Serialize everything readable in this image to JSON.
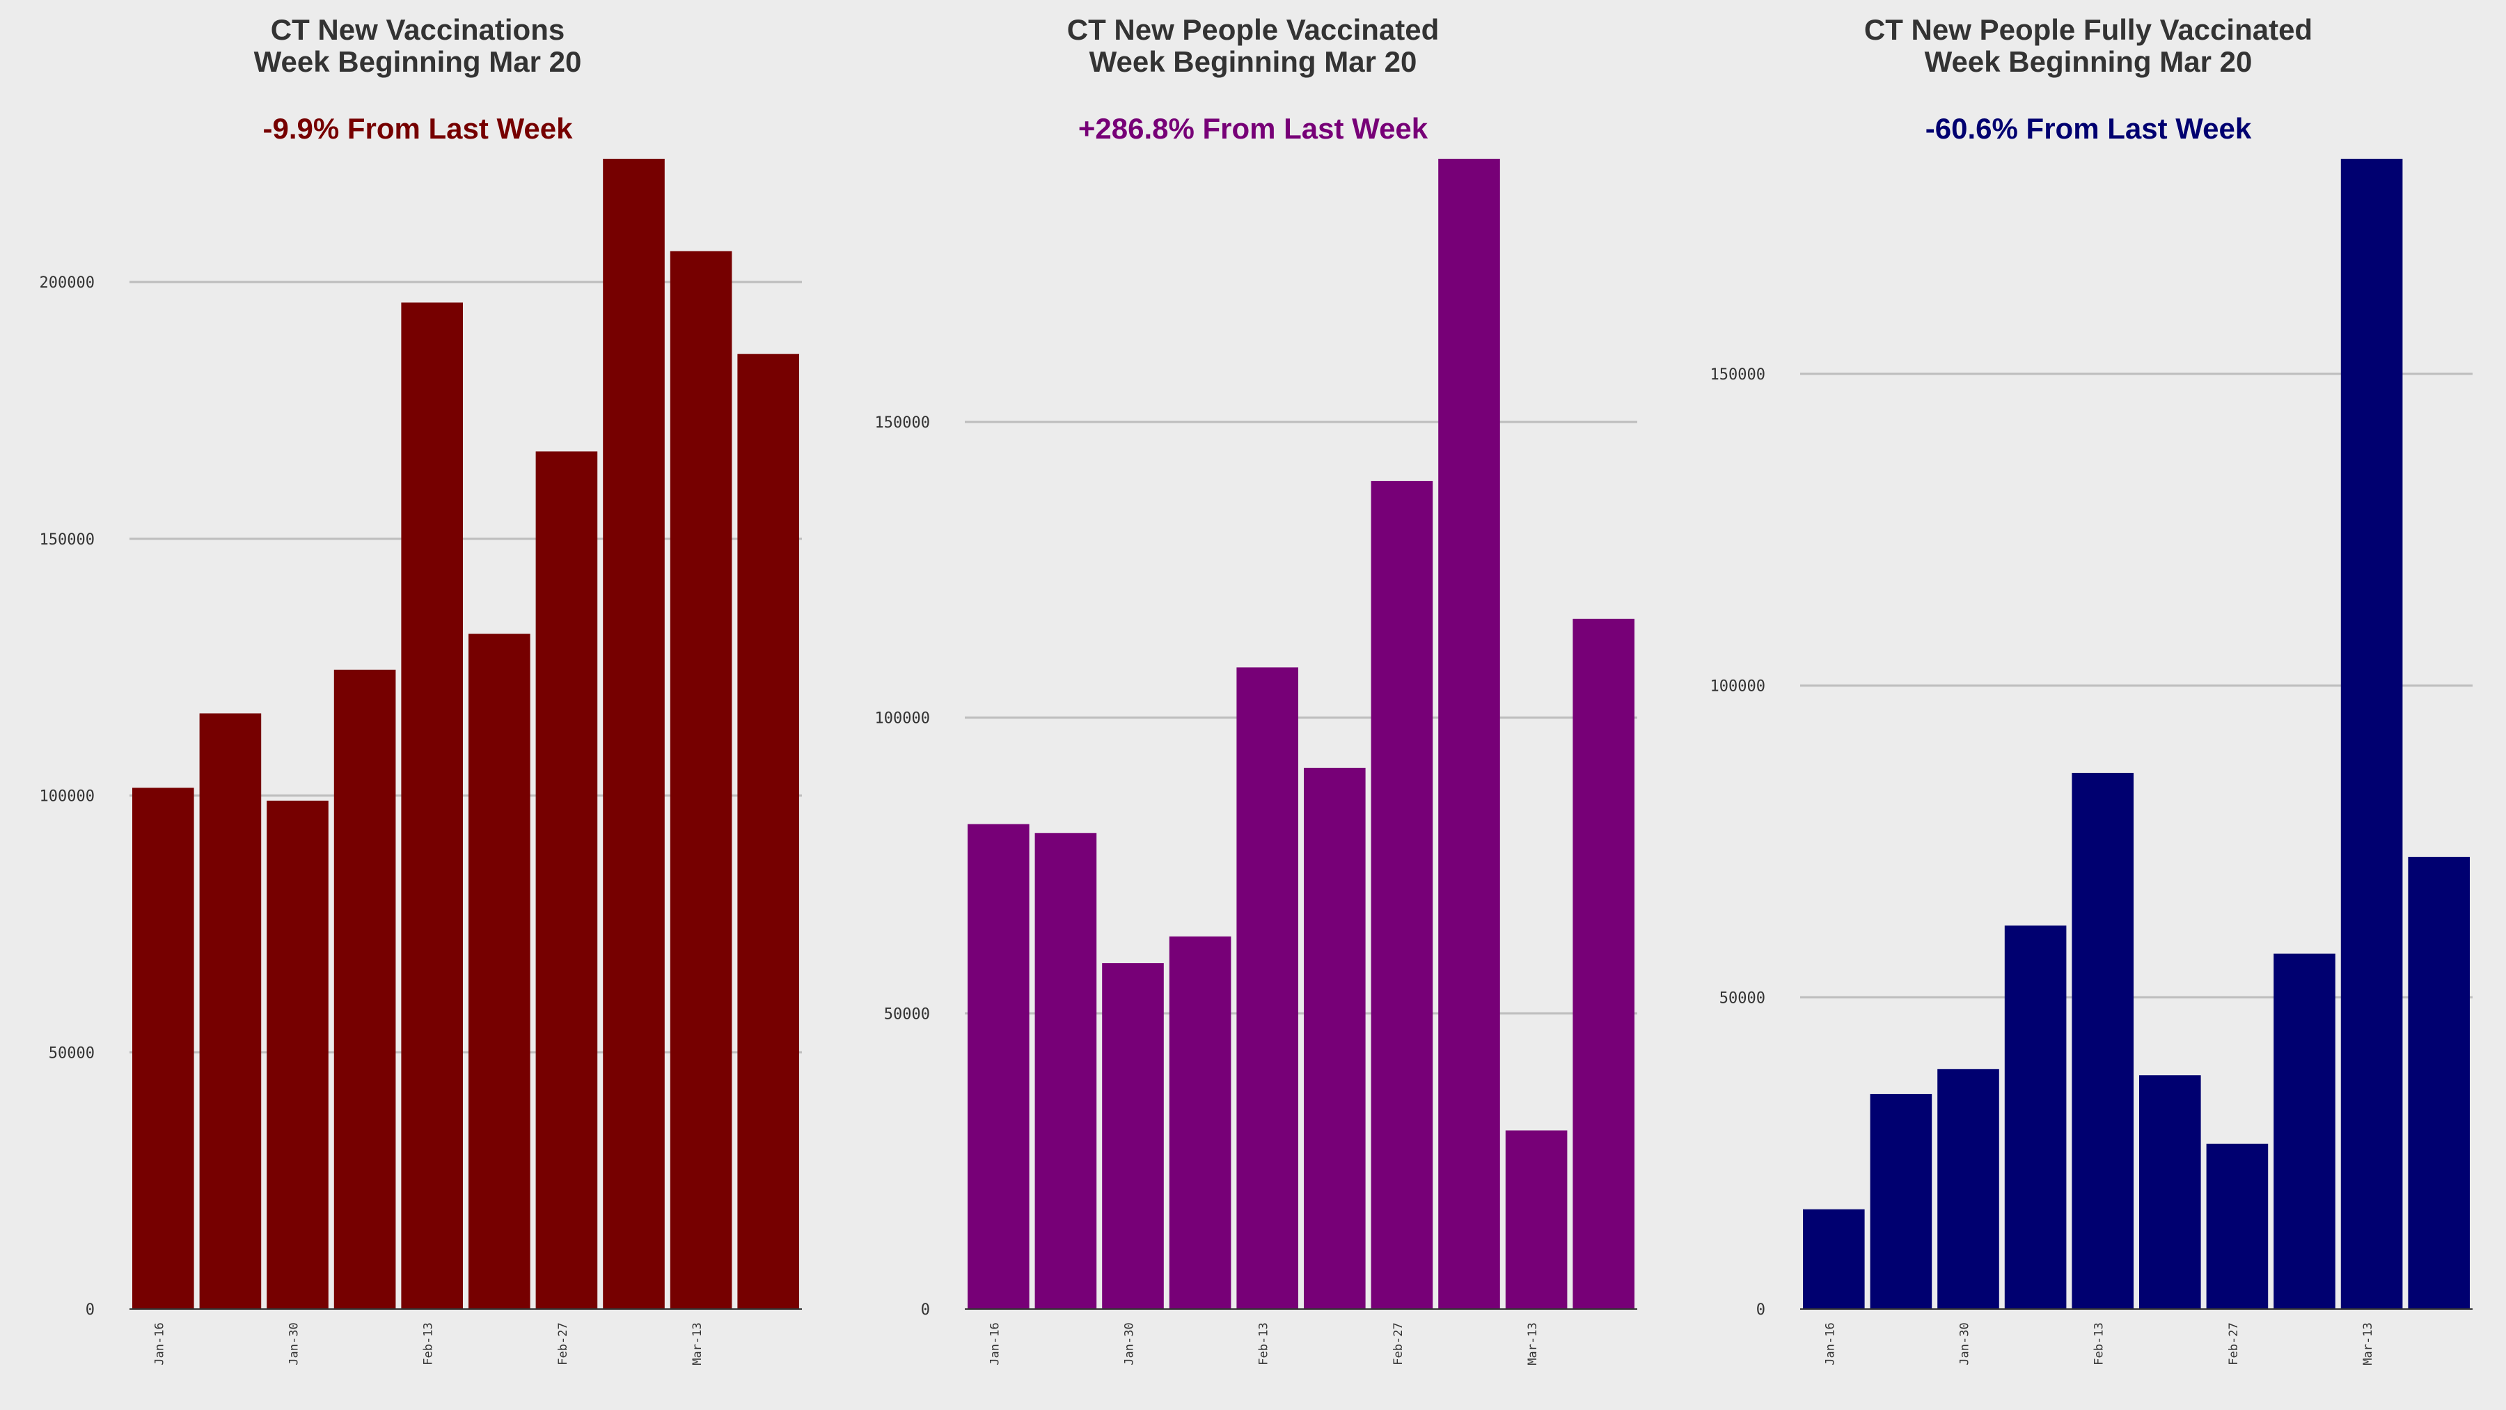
{
  "chart_data": [
    {
      "type": "bar",
      "title": "CT New Vaccinations\nWeek Beginning Mar 20",
      "title_lines": [
        "CT New Vaccinations",
        "Week Beginning Mar 20"
      ],
      "subtitle": "-9.9% From Last Week",
      "color": "#760000",
      "ylim": [
        0,
        224000
      ],
      "yticks": [
        0,
        50000,
        100000,
        150000,
        200000
      ],
      "tick_labels": [
        "Jan-16",
        "Jan-30",
        "Feb-13",
        "Feb-27",
        "Mar-13"
      ],
      "values": [
        101500,
        116000,
        99000,
        124500,
        196000,
        131500,
        167000,
        224000,
        206000,
        186000
      ],
      "grid": true,
      "legend": false,
      "xlabel": "",
      "ylabel": ""
    },
    {
      "type": "bar",
      "title": "CT New People Vaccinated\nWeek Beginning Mar 20",
      "title_lines": [
        "CT New People Vaccinated",
        "Week Beginning Mar 20"
      ],
      "subtitle": "+286.8% From Last Week",
      "color": "#770077",
      "ylim": [
        0,
        194500
      ],
      "yticks": [
        0,
        50000,
        100000,
        150000
      ],
      "tick_labels": [
        "Jan-16",
        "Jan-30",
        "Feb-13",
        "Feb-27",
        "Mar-13"
      ],
      "values": [
        82000,
        80500,
        58500,
        63000,
        108500,
        91500,
        140000,
        194500,
        30200,
        116700
      ],
      "grid": true,
      "legend": false,
      "xlabel": "",
      "ylabel": ""
    },
    {
      "type": "bar",
      "title": "CT New People Fully Vaccinated\nWeek Beginning Mar 20",
      "title_lines": [
        "CT New People Fully Vaccinated",
        "Week Beginning Mar 20"
      ],
      "subtitle": "-60.6% From Last Week",
      "color": "#000070",
      "ylim": [
        0,
        184500
      ],
      "yticks": [
        0,
        50000,
        100000,
        150000
      ],
      "tick_labels": [
        "Jan-16",
        "Jan-30",
        "Feb-13",
        "Feb-27",
        "Mar-13"
      ],
      "values": [
        16000,
        34500,
        38500,
        61500,
        86000,
        37500,
        26500,
        57000,
        184500,
        72500
      ],
      "grid": true,
      "legend": false,
      "xlabel": "",
      "ylabel": ""
    }
  ]
}
